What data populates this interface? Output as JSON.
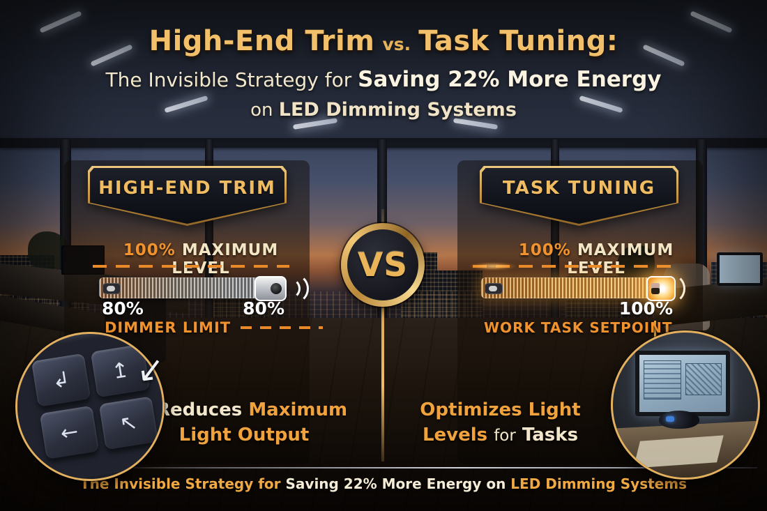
{
  "title": {
    "main_a": "High-End Trim",
    "main_vs": "vs.",
    "main_b": "Task Tuning:",
    "sub_a": "The Invisible Strategy for",
    "sub_b": "Saving 22% More Energy",
    "sub2_a": "on",
    "sub2_b": "LED Dimming Systems"
  },
  "vs_badge": "VS",
  "left_panel": {
    "badge_label": "HIGH-END TRIM",
    "max_level": {
      "pct": "100%",
      "label": "MAXIMUM LEVEL"
    },
    "slider": {
      "percent": 80,
      "value_left": "80%",
      "value_right": "80%"
    },
    "limit_label": "DIMMER LIMIT",
    "benefit": {
      "dash": "–",
      "line1_a": "Reduces",
      "line1_b": "Maximum",
      "line2": "Light Output"
    },
    "inset": {
      "key_glyphs": [
        "↲",
        "↥",
        "←",
        "↖"
      ],
      "annotation_glyph": "↙"
    }
  },
  "right_panel": {
    "badge_label": "TASK TUNING",
    "max_level": {
      "pct": "100%",
      "label": "MAXIMUM LEVEL"
    },
    "slider": {
      "percent": 100,
      "value": "100%"
    },
    "setpoint_label": "WORK TASK SETPOINT",
    "benefit": {
      "line1": "Optimizes Light",
      "line2_a": "Levels",
      "line2_b": "for",
      "line2_c": "Tasks"
    }
  },
  "footer": {
    "part_a": "The Invisible Strategy for",
    "part_b": "Saving 22% More Energy on",
    "part_c": "LED Dimming Systems"
  },
  "colors": {
    "gold": "#f2c06a",
    "orange_accent": "#f0922d",
    "cream": "#f3e6c4",
    "white": "#ffffff",
    "badge_border_gold": "#d8a855",
    "badge_background": "#14161d"
  }
}
